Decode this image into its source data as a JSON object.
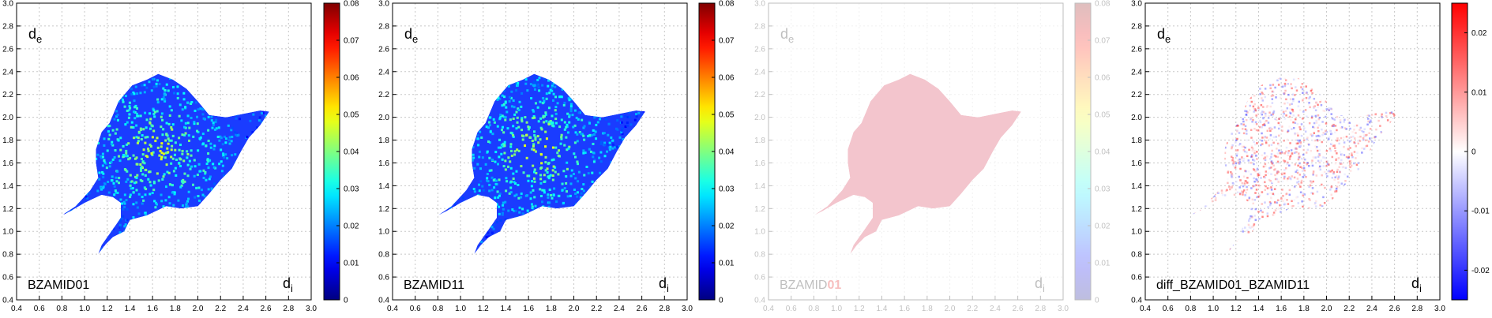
{
  "chart_data": [
    {
      "type": "heatmap",
      "label": "BZAMID01",
      "axis_x_label": "d",
      "axis_x_sub": "i",
      "axis_y_label": "d",
      "axis_y_sub": "e",
      "xlim": [
        0.4,
        3.0
      ],
      "ylim": [
        0.4,
        3.0
      ],
      "x_ticks": [
        "0.4",
        "0.6",
        "0.8",
        "1.0",
        "1.2",
        "1.4",
        "1.6",
        "1.8",
        "2.0",
        "2.2",
        "2.4",
        "2.6",
        "2.8",
        "3.0"
      ],
      "y_ticks": [
        "0.4",
        "0.6",
        "0.8",
        "1.0",
        "1.2",
        "1.4",
        "1.6",
        "1.8",
        "2.0",
        "2.2",
        "2.4",
        "2.6",
        "2.8",
        "3.0"
      ],
      "grid": true,
      "colormap": "jet",
      "colorbar_range": [
        0,
        0.08
      ],
      "colorbar_ticks": [
        "0",
        "0.01",
        "0.02",
        "0.03",
        "0.04",
        "0.05",
        "0.06",
        "0.07",
        "0.08"
      ],
      "faded": false
    },
    {
      "type": "heatmap",
      "label": "BZAMID11",
      "axis_x_label": "d",
      "axis_x_sub": "i",
      "axis_y_label": "d",
      "axis_y_sub": "e",
      "xlim": [
        0.4,
        3.0
      ],
      "ylim": [
        0.4,
        3.0
      ],
      "x_ticks": [
        "0.4",
        "0.6",
        "0.8",
        "1.0",
        "1.2",
        "1.4",
        "1.6",
        "1.8",
        "2.0",
        "2.2",
        "2.4",
        "2.6",
        "2.8",
        "3.0"
      ],
      "y_ticks": [
        "0.4",
        "0.6",
        "0.8",
        "1.0",
        "1.2",
        "1.4",
        "1.6",
        "1.8",
        "2.0",
        "2.2",
        "2.4",
        "2.6",
        "2.8",
        "3.0"
      ],
      "grid": true,
      "colormap": "jet",
      "colorbar_range": [
        0,
        0.08
      ],
      "colorbar_ticks": [
        "0",
        "0.01",
        "0.02",
        "0.03",
        "0.04",
        "0.05",
        "0.06",
        "0.07",
        "0.08"
      ],
      "faded": false
    },
    {
      "type": "heatmap",
      "label": "BZAMID",
      "label_highlight": "01",
      "axis_x_label": "d",
      "axis_x_sub": "i",
      "axis_y_label": "d",
      "axis_y_sub": "e",
      "xlim": [
        0.4,
        3.0
      ],
      "ylim": [
        0.4,
        3.0
      ],
      "x_ticks": [
        "0.4",
        "0.6",
        "0.8",
        "1.0",
        "1.2",
        "1.4",
        "1.6",
        "1.8",
        "2.0",
        "2.2",
        "2.4",
        "2.6",
        "2.8",
        "3.0"
      ],
      "y_ticks": [
        "0.4",
        "0.6",
        "0.8",
        "1.0",
        "1.2",
        "1.4",
        "1.6",
        "1.8",
        "2.0",
        "2.2",
        "2.4",
        "2.6",
        "2.8",
        "3.0"
      ],
      "grid": true,
      "colormap": "jet (faded)",
      "colorbar_range": [
        0,
        0.08
      ],
      "colorbar_ticks": [
        "0",
        "0.01",
        "0.02",
        "0.03",
        "0.04",
        "0.05",
        "0.06",
        "0.07",
        "0.08"
      ],
      "faded": true,
      "fill_color": "#d01c3c"
    },
    {
      "type": "heatmap",
      "label": "diff_BZAMID01_BZAMID11",
      "axis_x_label": "d",
      "axis_x_sub": "i",
      "axis_y_label": "d",
      "axis_y_sub": "e",
      "xlim": [
        0.4,
        3.0
      ],
      "ylim": [
        0.4,
        3.0
      ],
      "x_ticks": [
        "0.4",
        "0.6",
        "0.8",
        "1.0",
        "1.2",
        "1.4",
        "1.6",
        "1.8",
        "2.0",
        "2.2",
        "2.4",
        "2.6",
        "2.8",
        "3.0"
      ],
      "y_ticks": [
        "0.4",
        "0.6",
        "0.8",
        "1.0",
        "1.2",
        "1.4",
        "1.6",
        "1.8",
        "2.0",
        "2.2",
        "2.4",
        "2.6",
        "2.8",
        "3.0"
      ],
      "grid": true,
      "colormap": "blue-white-red",
      "colorbar_range": [
        -0.025,
        0.025
      ],
      "colorbar_ticks": [
        "-0.02",
        "-0.01",
        "0",
        "0.01",
        "0.02"
      ],
      "colorbar_tick_values": [
        -0.02,
        -0.01,
        0,
        0.01,
        0.02
      ],
      "faded": false
    }
  ],
  "fingerprint_shape": {
    "outline": [
      [
        0.8,
        1.14
      ],
      [
        0.92,
        1.22
      ],
      [
        1.05,
        1.36
      ],
      [
        1.12,
        1.47
      ],
      [
        1.1,
        1.6
      ],
      [
        1.1,
        1.72
      ],
      [
        1.15,
        1.87
      ],
      [
        1.22,
        1.95
      ],
      [
        1.3,
        2.14
      ],
      [
        1.42,
        2.28
      ],
      [
        1.55,
        2.33
      ],
      [
        1.65,
        2.38
      ],
      [
        1.78,
        2.33
      ],
      [
        1.9,
        2.25
      ],
      [
        2.0,
        2.14
      ],
      [
        2.1,
        2.02
      ],
      [
        2.25,
        2.0
      ],
      [
        2.4,
        2.03
      ],
      [
        2.55,
        2.06
      ],
      [
        2.63,
        2.05
      ],
      [
        2.55,
        1.93
      ],
      [
        2.45,
        1.82
      ],
      [
        2.38,
        1.7
      ],
      [
        2.3,
        1.55
      ],
      [
        2.2,
        1.45
      ],
      [
        2.1,
        1.33
      ],
      [
        2.0,
        1.22
      ],
      [
        1.85,
        1.2
      ],
      [
        1.72,
        1.22
      ],
      [
        1.55,
        1.14
      ],
      [
        1.4,
        1.1
      ],
      [
        1.35,
        1.0
      ],
      [
        1.25,
        0.95
      ],
      [
        1.18,
        0.88
      ],
      [
        1.12,
        0.8
      ],
      [
        1.15,
        0.88
      ],
      [
        1.25,
        1.02
      ],
      [
        1.32,
        1.12
      ],
      [
        1.32,
        1.25
      ],
      [
        1.25,
        1.3
      ],
      [
        1.15,
        1.32
      ],
      [
        1.0,
        1.25
      ],
      [
        0.88,
        1.18
      ]
    ]
  }
}
